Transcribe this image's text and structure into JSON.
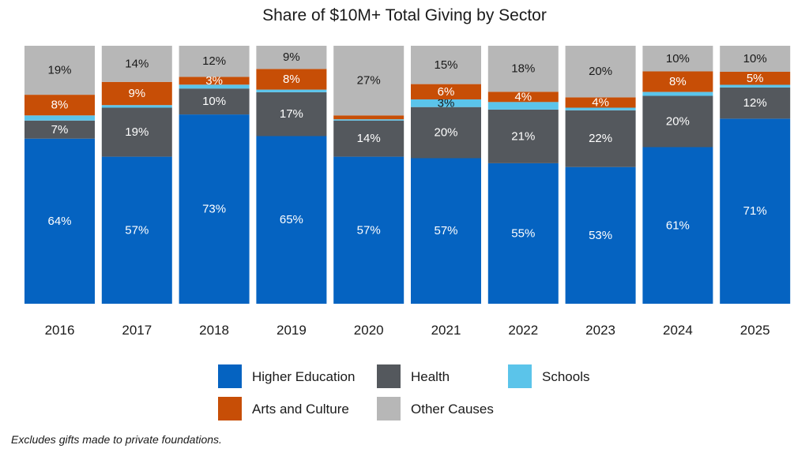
{
  "chart_data": {
    "type": "bar",
    "stacked": true,
    "percent_stacked": true,
    "title": "Share of $10M+ Total Giving by Sector",
    "categories": [
      "2016",
      "2017",
      "2018",
      "2019",
      "2020",
      "2021",
      "2022",
      "2023",
      "2024",
      "2025"
    ],
    "series": [
      {
        "name": "Higher Education",
        "color": "#0563C1",
        "values": [
          64,
          57,
          73,
          65,
          57,
          57,
          55,
          53,
          61,
          71
        ],
        "labels": [
          "64%",
          "57%",
          "73%",
          "65%",
          "57%",
          "57%",
          "55%",
          "53%",
          "61%",
          "71%"
        ],
        "label_color": "#ffffff"
      },
      {
        "name": "Health",
        "color": "#54585D",
        "values": [
          7,
          19,
          10,
          17,
          14,
          20,
          21,
          22,
          20,
          12
        ],
        "labels": [
          "7%",
          "19%",
          "10%",
          "17%",
          "14%",
          "20%",
          "21%",
          "22%",
          "20%",
          "12%"
        ],
        "label_color": "#ffffff"
      },
      {
        "name": "Schools",
        "color": "#5BC4EA",
        "values": [
          2,
          1,
          1.5,
          1,
          0.5,
          3,
          3,
          1,
          1.5,
          1
        ],
        "labels": [
          "",
          "",
          "",
          "",
          "",
          "3%",
          "",
          "",
          "",
          ""
        ],
        "label_color": "#1a1a1a"
      },
      {
        "name": "Arts and Culture",
        "color": "#C74E06",
        "values": [
          8,
          9,
          3,
          8,
          1.5,
          6,
          4,
          4,
          8,
          5
        ],
        "labels": [
          "8%",
          "9%",
          "3%",
          "8%",
          "",
          "6%",
          "4%",
          "4%",
          "8%",
          "5%"
        ],
        "label_color": "#ffffff"
      },
      {
        "name": "Other Causes",
        "color": "#B7B7B7",
        "values": [
          19,
          14,
          12,
          9,
          27,
          15,
          18,
          20,
          10,
          10
        ],
        "labels": [
          "19%",
          "14%",
          "12%",
          "9%",
          "27%",
          "15%",
          "18%",
          "20%",
          "10%",
          "10%"
        ],
        "label_color": "#1a1a1a"
      }
    ],
    "ylim": [
      0,
      100
    ],
    "xlabel": "",
    "ylabel": "",
    "grid": false,
    "legend_position": "bottom",
    "legend_order": [
      "Higher Education",
      "Health",
      "Schools",
      "Arts and Culture",
      "Other Causes"
    ]
  },
  "footnote": "Excludes gifts made to private foundations."
}
